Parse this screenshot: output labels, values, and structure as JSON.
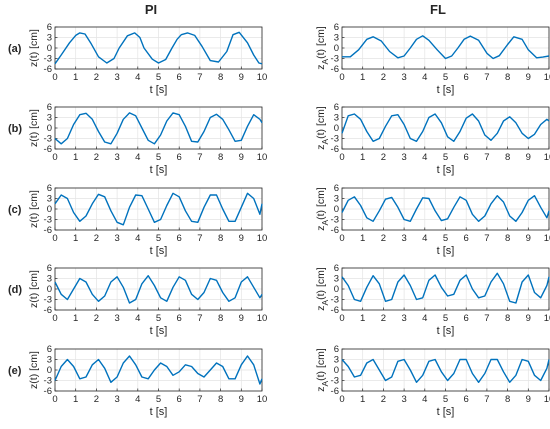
{
  "columns": [
    "PI",
    "FL"
  ],
  "row_labels": [
    "(a)",
    "(b)",
    "(c)",
    "(d)",
    "(e)"
  ],
  "line_color": "#0072bd",
  "chart_data": [
    {
      "type": "line",
      "panel": "PI (a)",
      "xlabel": "t [s]",
      "ylabel": "z(t) [cm]",
      "xlim": [
        0,
        10
      ],
      "ylim": [
        -6,
        6
      ],
      "xticks": [
        0,
        1,
        2,
        3,
        4,
        5,
        6,
        7,
        8,
        9,
        10
      ],
      "yticks": [
        -6,
        -3,
        0,
        3,
        6
      ],
      "grid": true,
      "series": [
        {
          "x": [
            0,
            0.3,
            0.7,
            1.0,
            1.2,
            1.45,
            1.75,
            2.1,
            2.5,
            2.85,
            3.1,
            3.5,
            3.85,
            4.1,
            4.3,
            4.7,
            5.0,
            5.35,
            5.65,
            5.9,
            6.1,
            6.4,
            6.75,
            7.1,
            7.5,
            7.9,
            8.3,
            8.6,
            8.9,
            9.3,
            9.6,
            9.85,
            10
          ],
          "y": [
            -4.5,
            -2.0,
            1.5,
            3.6,
            4.3,
            4.0,
            1.2,
            -2.5,
            -4.3,
            -3.0,
            0.0,
            3.5,
            4.3,
            3.0,
            0.0,
            -3.2,
            -4.3,
            -3.3,
            0.0,
            2.5,
            3.8,
            4.3,
            3.6,
            0.5,
            -3.6,
            -4.0,
            -1.0,
            3.8,
            4.5,
            1.5,
            -2.0,
            -4.3,
            -4.5
          ]
        }
      ]
    },
    {
      "type": "line",
      "panel": "FL (a)",
      "xlabel": "t [s]",
      "ylabel": "z_A(t) [cm]",
      "xlim": [
        0,
        10
      ],
      "ylim": [
        -6,
        6
      ],
      "xticks": [
        0,
        1,
        2,
        3,
        4,
        5,
        6,
        7,
        8,
        9,
        10
      ],
      "yticks": [
        -6,
        -3,
        0,
        3,
        6
      ],
      "grid": true,
      "series": [
        {
          "x": [
            0,
            0.4,
            0.8,
            1.2,
            1.5,
            1.9,
            2.3,
            2.7,
            3.0,
            3.3,
            3.6,
            3.9,
            4.2,
            4.6,
            5.0,
            5.3,
            5.6,
            5.9,
            6.2,
            6.6,
            7.0,
            7.3,
            7.6,
            8.0,
            8.3,
            8.7,
            9.0,
            9.4,
            9.7,
            10
          ],
          "y": [
            -2.5,
            -2.5,
            -0.5,
            2.5,
            3.2,
            2.0,
            -1.0,
            -2.8,
            -2.3,
            0.0,
            2.5,
            3.5,
            2.2,
            -0.5,
            -3.0,
            -2.3,
            0.0,
            2.5,
            3.4,
            2.2,
            -1.5,
            -3.0,
            -2.2,
            1.0,
            3.2,
            2.5,
            -0.5,
            -2.8,
            -2.6,
            -2.3
          ]
        }
      ]
    },
    {
      "type": "line",
      "panel": "PI (b)",
      "xlabel": "t [s]",
      "ylabel": "z(t) [cm]",
      "xlim": [
        0,
        10
      ],
      "ylim": [
        -6,
        6
      ],
      "xticks": [
        0,
        1,
        2,
        3,
        4,
        5,
        6,
        7,
        8,
        9,
        10
      ],
      "yticks": [
        -6,
        -3,
        0,
        3,
        6
      ],
      "grid": true,
      "series": [
        {
          "x": [
            0,
            0.3,
            0.6,
            0.9,
            1.2,
            1.5,
            1.8,
            2.1,
            2.4,
            2.7,
            3.0,
            3.3,
            3.6,
            3.9,
            4.2,
            4.5,
            4.8,
            5.1,
            5.4,
            5.7,
            6.0,
            6.3,
            6.6,
            6.9,
            7.2,
            7.5,
            7.8,
            8.1,
            8.4,
            8.7,
            9.0,
            9.3,
            9.6,
            9.9,
            10
          ],
          "y": [
            -3.0,
            -4.5,
            -3.0,
            1.0,
            3.8,
            4.2,
            2.5,
            -1.0,
            -4.0,
            -4.5,
            -1.5,
            2.5,
            4.3,
            3.5,
            0.0,
            -3.5,
            -4.5,
            -2.0,
            2.0,
            4.3,
            3.8,
            0.5,
            -3.8,
            -4.0,
            -1.0,
            3.0,
            3.9,
            2.5,
            -0.5,
            -3.8,
            -3.5,
            0.5,
            3.8,
            2.5,
            1.5
          ]
        }
      ]
    },
    {
      "type": "line",
      "panel": "FL (b)",
      "xlabel": "t [s]",
      "ylabel": "z_A(t) [cm]",
      "xlim": [
        0,
        10
      ],
      "ylim": [
        -6,
        6
      ],
      "xticks": [
        0,
        1,
        2,
        3,
        4,
        5,
        6,
        7,
        8,
        9,
        10
      ],
      "yticks": [
        -6,
        -3,
        0,
        3,
        6
      ],
      "grid": true,
      "series": [
        {
          "x": [
            0,
            0.3,
            0.6,
            0.9,
            1.2,
            1.5,
            1.8,
            2.1,
            2.4,
            2.7,
            3.0,
            3.3,
            3.6,
            3.9,
            4.2,
            4.5,
            4.8,
            5.1,
            5.4,
            5.7,
            6.0,
            6.3,
            6.6,
            6.9,
            7.2,
            7.5,
            7.8,
            8.1,
            8.4,
            8.7,
            9.0,
            9.3,
            9.6,
            9.9,
            10
          ],
          "y": [
            -1.5,
            3.5,
            4.0,
            2.5,
            -1.0,
            -3.8,
            -3.0,
            0.5,
            3.5,
            3.8,
            1.0,
            -3.0,
            -3.8,
            -1.0,
            3.0,
            4.0,
            1.5,
            -2.5,
            -3.8,
            -1.0,
            2.8,
            4.0,
            2.0,
            -2.0,
            -3.5,
            -1.5,
            2.0,
            3.2,
            1.5,
            -1.5,
            -3.0,
            -1.8,
            1.0,
            2.5,
            2.0
          ]
        }
      ]
    },
    {
      "type": "line",
      "panel": "PI (c)",
      "xlabel": "t [s]",
      "ylabel": "z(t) [cm]",
      "xlim": [
        0,
        10
      ],
      "ylim": [
        -6,
        6
      ],
      "xticks": [
        0,
        1,
        2,
        3,
        4,
        5,
        6,
        7,
        8,
        9,
        10
      ],
      "yticks": [
        -6,
        -3,
        0,
        3,
        6
      ],
      "grid": true,
      "series": [
        {
          "x": [
            0,
            0.3,
            0.6,
            0.9,
            1.2,
            1.5,
            1.8,
            2.1,
            2.4,
            2.7,
            3.0,
            3.3,
            3.6,
            3.9,
            4.2,
            4.5,
            4.8,
            5.1,
            5.4,
            5.7,
            6.0,
            6.3,
            6.6,
            6.9,
            7.2,
            7.5,
            7.8,
            8.1,
            8.4,
            8.7,
            9.0,
            9.3,
            9.6,
            9.9,
            10
          ],
          "y": [
            1.5,
            4.0,
            3.0,
            -1.0,
            -3.5,
            -2.0,
            1.5,
            4.2,
            3.5,
            -0.5,
            -3.8,
            -4.5,
            0.5,
            4.0,
            3.8,
            0.0,
            -3.8,
            -3.0,
            1.0,
            4.5,
            3.5,
            -0.5,
            -3.5,
            -3.8,
            0.5,
            4.0,
            4.0,
            0.0,
            -3.5,
            -3.5,
            0.5,
            4.5,
            3.0,
            -1.5,
            1.5
          ]
        }
      ]
    },
    {
      "type": "line",
      "panel": "FL (c)",
      "xlabel": "t [s]",
      "ylabel": "z_A(t) [cm]",
      "xlim": [
        0,
        10
      ],
      "ylim": [
        -6,
        6
      ],
      "xticks": [
        0,
        1,
        2,
        3,
        4,
        5,
        6,
        7,
        8,
        9,
        10
      ],
      "yticks": [
        -6,
        -3,
        0,
        3,
        6
      ],
      "grid": true,
      "series": [
        {
          "x": [
            0,
            0.3,
            0.6,
            0.9,
            1.2,
            1.5,
            1.8,
            2.1,
            2.4,
            2.7,
            3.0,
            3.3,
            3.6,
            3.9,
            4.2,
            4.5,
            4.8,
            5.1,
            5.4,
            5.7,
            6.0,
            6.3,
            6.6,
            6.9,
            7.2,
            7.5,
            7.8,
            8.1,
            8.4,
            8.7,
            9.0,
            9.3,
            9.6,
            9.9,
            10
          ],
          "y": [
            -1.0,
            2.5,
            3.5,
            1.0,
            -2.5,
            -3.5,
            -0.5,
            2.8,
            3.3,
            0.5,
            -3.0,
            -3.5,
            0.0,
            3.2,
            3.0,
            -0.5,
            -3.3,
            -2.8,
            0.5,
            3.5,
            2.5,
            -1.5,
            -3.5,
            -2.0,
            1.5,
            3.8,
            2.0,
            -2.0,
            -3.5,
            -1.0,
            2.5,
            3.8,
            0.5,
            -2.5,
            -0.5
          ]
        }
      ]
    },
    {
      "type": "line",
      "panel": "PI (d)",
      "xlabel": "t [s]",
      "ylabel": "z(t) [cm]",
      "xlim": [
        0,
        10
      ],
      "ylim": [
        -6,
        6
      ],
      "xticks": [
        0,
        1,
        2,
        3,
        4,
        5,
        6,
        7,
        8,
        9,
        10
      ],
      "yticks": [
        -6,
        -3,
        0,
        3,
        6
      ],
      "grid": true,
      "series": [
        {
          "x": [
            0,
            0.3,
            0.6,
            0.9,
            1.2,
            1.5,
            1.8,
            2.1,
            2.4,
            2.7,
            3.0,
            3.3,
            3.6,
            3.9,
            4.2,
            4.5,
            4.8,
            5.1,
            5.4,
            5.7,
            6.0,
            6.3,
            6.6,
            6.9,
            7.2,
            7.5,
            7.8,
            8.1,
            8.4,
            8.7,
            9.0,
            9.3,
            9.6,
            9.9,
            10
          ],
          "y": [
            2.0,
            -1.5,
            -3.0,
            0.0,
            3.0,
            2.0,
            -1.5,
            -3.5,
            -2.0,
            2.0,
            3.5,
            0.5,
            -4.0,
            -3.0,
            1.5,
            3.8,
            1.0,
            -2.5,
            -3.5,
            0.5,
            3.5,
            2.5,
            -1.5,
            -3.0,
            -1.0,
            3.0,
            2.5,
            -1.0,
            -3.5,
            -2.5,
            2.0,
            3.5,
            0.5,
            -2.5,
            -1.5
          ]
        }
      ]
    },
    {
      "type": "line",
      "panel": "FL (d)",
      "xlabel": "t [s]",
      "ylabel": "z_A(t) [cm]",
      "xlim": [
        0,
        10
      ],
      "ylim": [
        -6,
        6
      ],
      "xticks": [
        0,
        1,
        2,
        3,
        4,
        5,
        6,
        7,
        8,
        9,
        10
      ],
      "yticks": [
        -6,
        -3,
        0,
        3,
        6
      ],
      "grid": true,
      "series": [
        {
          "x": [
            0,
            0.3,
            0.6,
            0.9,
            1.2,
            1.5,
            1.8,
            2.1,
            2.4,
            2.7,
            3.0,
            3.3,
            3.6,
            3.9,
            4.2,
            4.5,
            4.8,
            5.1,
            5.4,
            5.7,
            6.0,
            6.3,
            6.6,
            6.9,
            7.2,
            7.5,
            7.8,
            8.1,
            8.4,
            8.7,
            9.0,
            9.3,
            9.6,
            9.9,
            10
          ],
          "y": [
            3.5,
            1.0,
            -3.0,
            -3.5,
            0.5,
            3.8,
            1.5,
            -3.5,
            -3.0,
            2.0,
            4.0,
            1.0,
            -3.0,
            -2.5,
            2.5,
            4.0,
            0.5,
            -2.0,
            -1.5,
            2.5,
            4.0,
            0.0,
            -2.5,
            -2.0,
            2.0,
            4.5,
            1.5,
            -3.5,
            -4.0,
            2.0,
            4.0,
            -1.0,
            -2.5,
            1.0,
            3.5
          ]
        }
      ]
    },
    {
      "type": "line",
      "panel": "PI (e)",
      "xlabel": "t [s]",
      "ylabel": "z(t) [cm]",
      "xlim": [
        0,
        10
      ],
      "ylim": [
        -6,
        6
      ],
      "xticks": [
        0,
        1,
        2,
        3,
        4,
        5,
        6,
        7,
        8,
        9,
        10
      ],
      "yticks": [
        -6,
        -3,
        0,
        3,
        6
      ],
      "grid": true,
      "series": [
        {
          "x": [
            0,
            0.3,
            0.6,
            0.9,
            1.2,
            1.5,
            1.8,
            2.1,
            2.4,
            2.7,
            3.0,
            3.3,
            3.6,
            3.9,
            4.2,
            4.5,
            4.8,
            5.1,
            5.4,
            5.7,
            6.0,
            6.3,
            6.6,
            6.9,
            7.2,
            7.5,
            7.8,
            8.1,
            8.4,
            8.7,
            9.0,
            9.3,
            9.6,
            9.9,
            10
          ],
          "y": [
            -3.0,
            1.0,
            3.0,
            1.0,
            -2.5,
            -2.0,
            1.5,
            3.0,
            0.5,
            -3.5,
            -2.0,
            2.0,
            4.0,
            1.5,
            -2.0,
            -2.5,
            0.0,
            2.0,
            1.0,
            -1.5,
            -0.5,
            1.5,
            1.0,
            -1.0,
            -2.0,
            0.0,
            2.0,
            1.0,
            -2.5,
            -2.5,
            1.5,
            4.0,
            1.5,
            -4.0,
            -2.5
          ]
        }
      ]
    },
    {
      "type": "line",
      "panel": "FL (e)",
      "xlabel": "t [s]",
      "ylabel": "z_A(t) [cm]",
      "xlim": [
        0,
        10
      ],
      "ylim": [
        -6,
        6
      ],
      "xticks": [
        0,
        1,
        2,
        3,
        4,
        5,
        6,
        7,
        8,
        9,
        10
      ],
      "yticks": [
        -6,
        -3,
        0,
        3,
        6
      ],
      "grid": true,
      "series": [
        {
          "x": [
            0,
            0.3,
            0.6,
            0.9,
            1.2,
            1.5,
            1.8,
            2.1,
            2.4,
            2.7,
            3.0,
            3.3,
            3.6,
            3.9,
            4.2,
            4.5,
            4.8,
            5.1,
            5.4,
            5.7,
            6.0,
            6.3,
            6.6,
            6.9,
            7.2,
            7.5,
            7.8,
            8.1,
            8.4,
            8.7,
            9.0,
            9.3,
            9.6,
            9.9,
            10
          ],
          "y": [
            3.0,
            1.0,
            -2.0,
            -1.5,
            2.0,
            3.0,
            0.0,
            -3.0,
            -2.0,
            2.5,
            3.0,
            0.0,
            -3.5,
            -1.5,
            2.5,
            3.0,
            -0.5,
            -3.0,
            -1.0,
            3.0,
            3.0,
            -1.0,
            -3.5,
            -1.0,
            3.0,
            3.0,
            -0.5,
            -3.5,
            -1.5,
            3.0,
            2.5,
            -1.5,
            -3.0,
            0.5,
            3.0
          ]
        }
      ]
    }
  ]
}
